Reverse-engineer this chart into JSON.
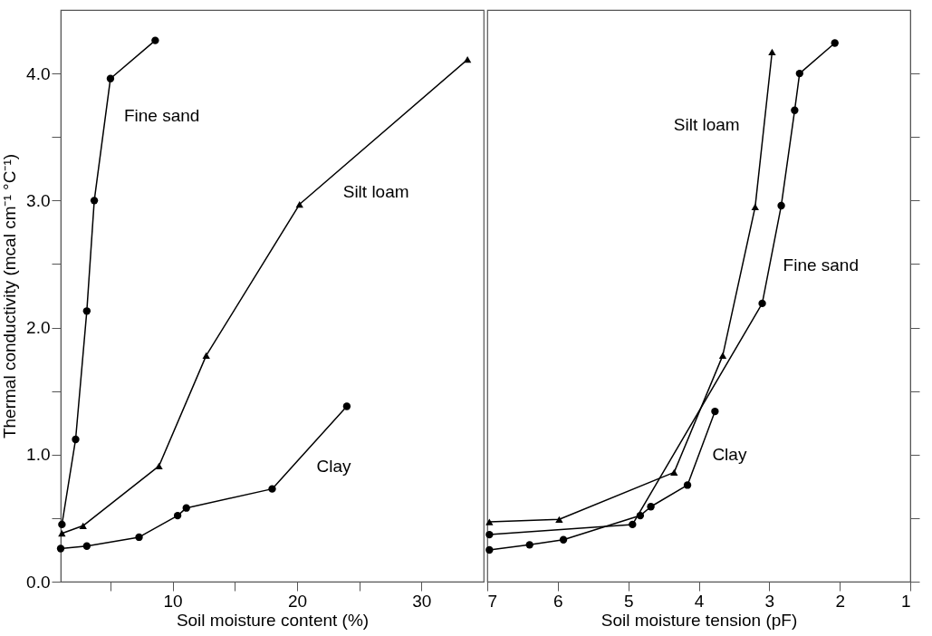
{
  "chart_data": [
    {
      "type": "line",
      "xlabel": "Soil moisture content (%)",
      "ylabel": "Thermal conductivity (mcal cm⁻¹ °C⁻¹)",
      "xlim": [
        1,
        35
      ],
      "xticks": [
        {
          "value": 5,
          "label": null
        },
        10,
        {
          "value": 15,
          "label": null
        },
        20,
        {
          "value": 25,
          "label": null
        },
        30
      ],
      "ylim": [
        0,
        4.5
      ],
      "yticks": [
        {
          "value": 0,
          "label": "0.0"
        },
        {
          "value": 0.5,
          "label": null
        },
        {
          "value": 1,
          "label": "1.0"
        },
        {
          "value": 1.5,
          "label": null
        },
        {
          "value": 2,
          "label": "2.0"
        },
        {
          "value": 2.5,
          "label": null
        },
        {
          "value": 3,
          "label": "3.0"
        },
        {
          "value": 3.5,
          "label": null
        },
        {
          "value": 4,
          "label": "4.0"
        }
      ],
      "grid": false,
      "series": [
        {
          "name": "Fine sand",
          "color": "#000000",
          "marker": "circle",
          "x": [
            1.1,
            2.2,
            3.1,
            3.7,
            5.0,
            8.6
          ],
          "values": [
            0.45,
            1.12,
            2.13,
            3.0,
            3.96,
            4.26
          ]
        },
        {
          "name": "Silt loam",
          "color": "#000000",
          "marker": "triangle",
          "x": [
            1.1,
            2.8,
            8.9,
            12.7,
            20.2,
            33.7
          ],
          "values": [
            0.38,
            0.44,
            0.91,
            1.78,
            2.97,
            4.11
          ]
        },
        {
          "name": "Clay",
          "color": "#000000",
          "marker": "circle",
          "x": [
            1.0,
            3.1,
            7.3,
            10.4,
            11.1,
            18.0,
            24.0
          ],
          "values": [
            0.26,
            0.28,
            0.35,
            0.52,
            0.58,
            0.73,
            1.38
          ]
        }
      ]
    },
    {
      "type": "line",
      "xlabel": "Soil moisture tension (pF)",
      "xlim": [
        7,
        1
      ],
      "xticks": [
        7,
        6,
        5,
        4,
        3,
        2,
        1
      ],
      "ylim": [
        0,
        4.5
      ],
      "yticks": [
        {
          "value": 0,
          "label": null
        },
        {
          "value": 0.5,
          "label": null
        },
        {
          "value": 1,
          "label": null
        },
        {
          "value": 1.5,
          "label": null
        },
        {
          "value": 2,
          "label": null
        },
        {
          "value": 2.5,
          "label": null
        },
        {
          "value": 3,
          "label": null
        },
        {
          "value": 3.5,
          "label": null
        },
        {
          "value": 4,
          "label": null
        }
      ],
      "tick_labels": "x",
      "grid": false,
      "series": [
        {
          "name": "Fine sand",
          "color": "#000000",
          "marker": "circle",
          "x": [
            6.97,
            4.94,
            3.1,
            2.83,
            2.64,
            2.57,
            2.07
          ],
          "values": [
            0.37,
            0.45,
            2.19,
            2.96,
            3.71,
            4.0,
            4.24
          ]
        },
        {
          "name": "Silt loam",
          "color": "#000000",
          "marker": "triangle",
          "x": [
            6.97,
            5.98,
            4.35,
            3.66,
            3.2,
            2.96
          ],
          "values": [
            0.47,
            0.49,
            0.86,
            1.78,
            2.95,
            4.17
          ]
        },
        {
          "name": "Clay",
          "color": "#000000",
          "marker": "circle",
          "x": [
            6.97,
            6.4,
            5.92,
            4.83,
            4.68,
            4.16,
            3.77
          ],
          "values": [
            0.25,
            0.29,
            0.33,
            0.52,
            0.59,
            0.76,
            1.34
          ]
        }
      ]
    }
  ]
}
